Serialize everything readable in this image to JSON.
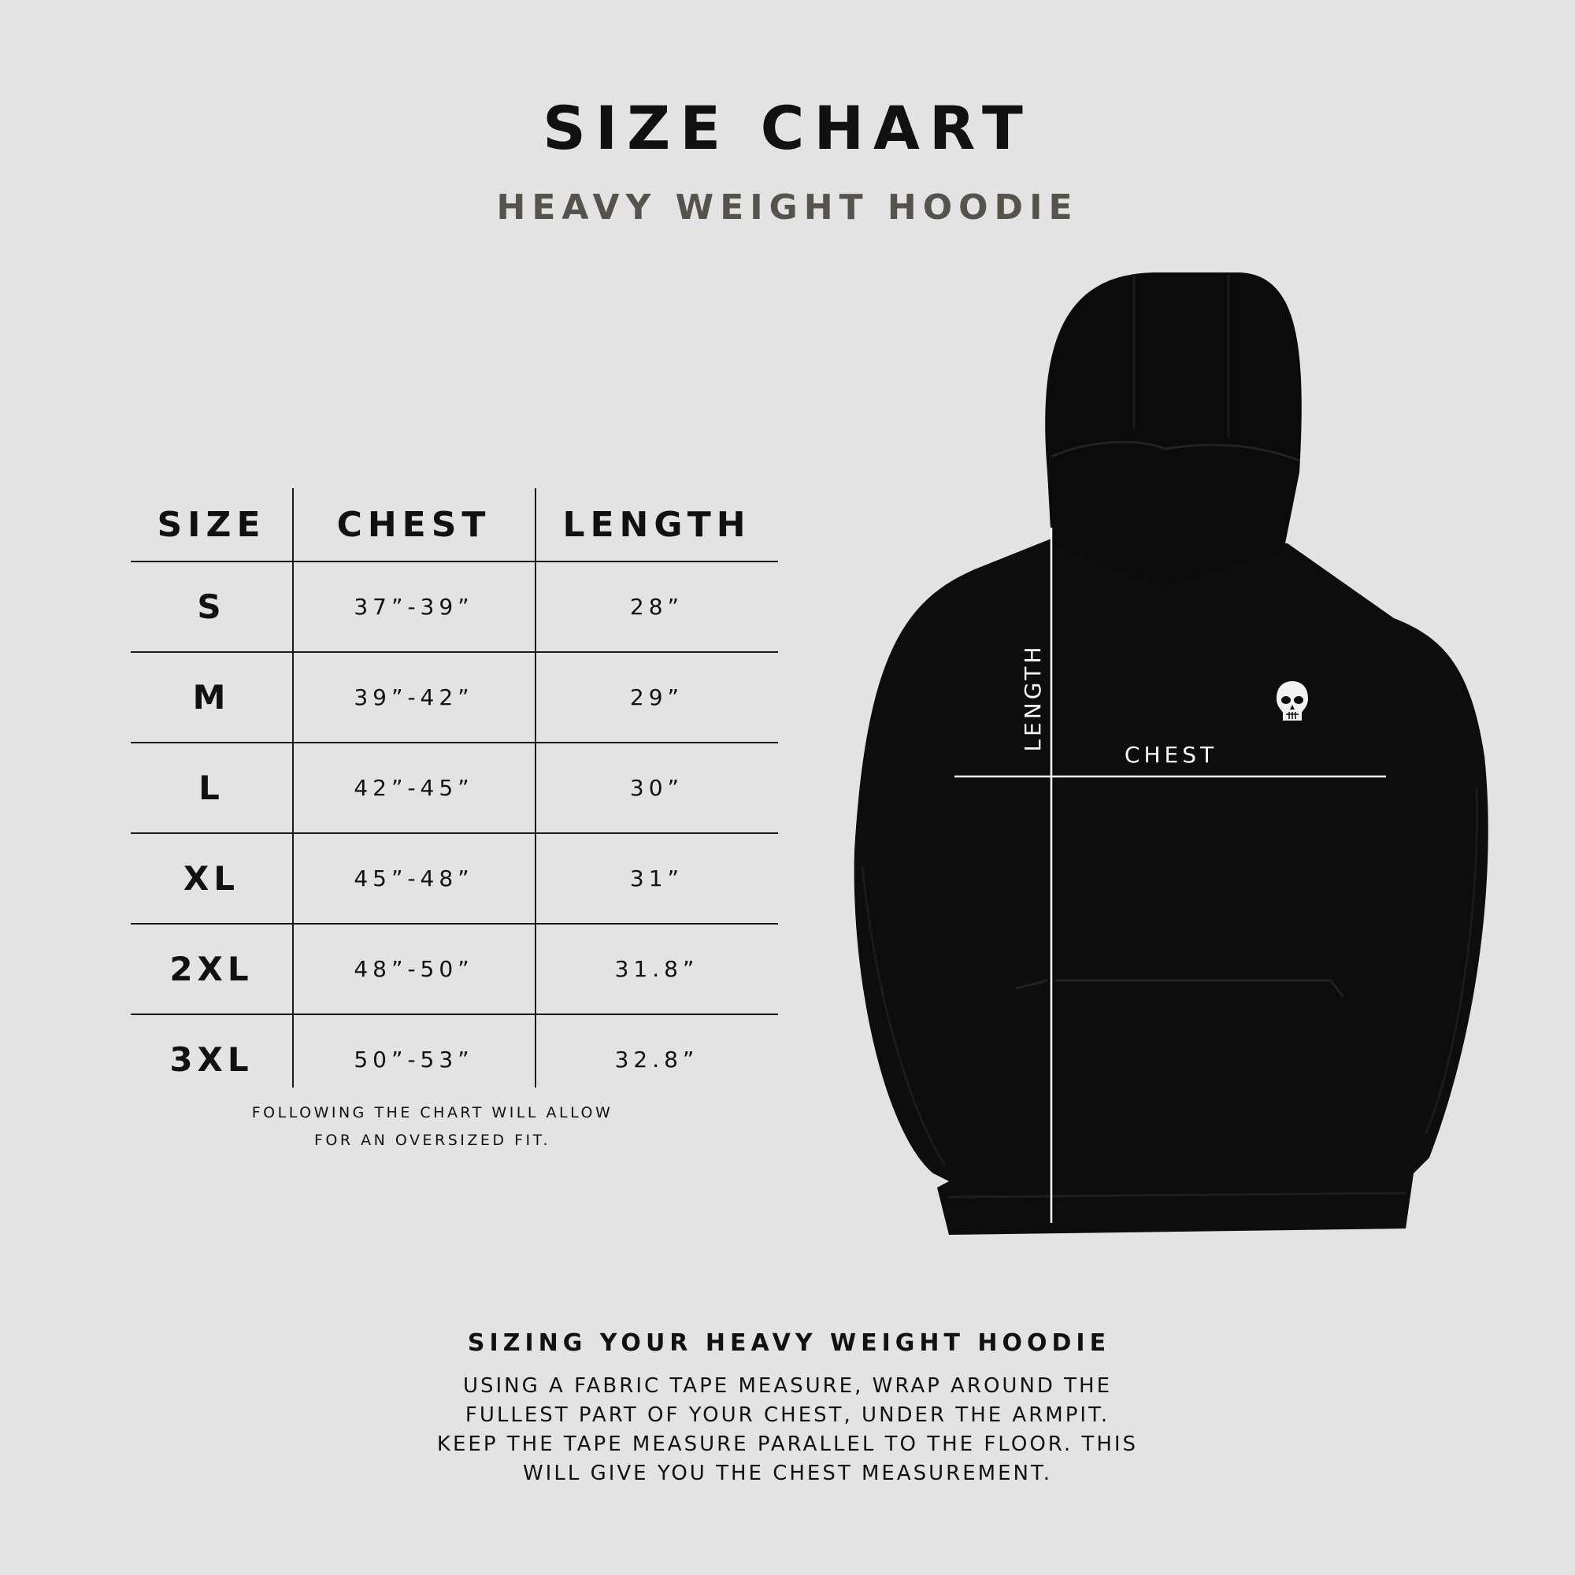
{
  "header": {
    "title": "SIZE CHART",
    "subtitle": "HEAVY WEIGHT HOODIE"
  },
  "table": {
    "columns": [
      "SIZE",
      "CHEST",
      "LENGTH"
    ],
    "rows": [
      {
        "size": "S",
        "chest": "37”-39”",
        "length": "28”"
      },
      {
        "size": "M",
        "chest": "39”-42”",
        "length": "29”"
      },
      {
        "size": "L",
        "chest": "42”-45”",
        "length": "30”"
      },
      {
        "size": "XL",
        "chest": "45”-48”",
        "length": "31”"
      },
      {
        "size": "2XL",
        "chest": "48”-50”",
        "length": "31.8”"
      },
      {
        "size": "3XL",
        "chest": "50”-53”",
        "length": "32.8”"
      }
    ],
    "note": [
      "FOLLOWING THE CHART WILL ALLOW",
      "FOR AN OVERSIZED FIT."
    ]
  },
  "diagram": {
    "length_label": "LENGTH",
    "chest_label": "CHEST",
    "logo_icon": "skull-icon",
    "garment_color": "#0d0d0d"
  },
  "guide": {
    "heading": "SIZING YOUR HEAVY WEIGHT HOODIE",
    "lines": [
      "USING A FABRIC TAPE MEASURE, WRAP AROUND THE",
      "FULLEST PART OF YOUR CHEST, UNDER THE ARMPIT.",
      "KEEP THE TAPE MEASURE PARALLEL TO THE FLOOR. THIS",
      "WILL GIVE YOU THE CHEST MEASUREMENT."
    ]
  }
}
